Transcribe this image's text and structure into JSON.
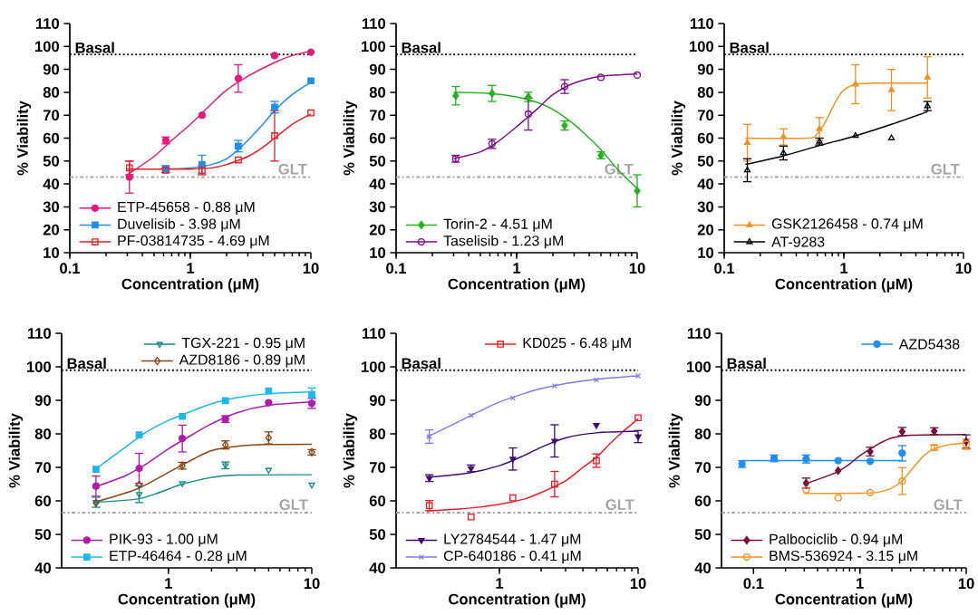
{
  "chart_data": [
    {
      "type": "line",
      "xlabel": "Concentration (μM)",
      "ylabel": "% Viability",
      "log": "x",
      "xlim": [
        0.1,
        10
      ],
      "ylim": [
        10,
        110
      ],
      "xticks": [
        0.1,
        1,
        10
      ],
      "yticks": [
        10,
        20,
        30,
        40,
        50,
        60,
        70,
        80,
        90,
        100,
        110
      ],
      "legend": "bottom left",
      "ref_lines": [
        {
          "axis": "y",
          "value": 96.5,
          "label": "Basal",
          "color": "#000000",
          "line_style": "dotted"
        },
        {
          "axis": "y",
          "value": 43,
          "label": "GLT",
          "color": "#a6a6a6",
          "line_style": "dashdot"
        }
      ],
      "series": [
        {
          "type": "scatter",
          "name": "ETP-45658 - 0.88 μM",
          "color": "#e8197a",
          "marker": "circle",
          "x": [
            0.3125,
            0.625,
            1.25,
            2.5,
            5,
            10
          ],
          "values": [
            43,
            59,
            70,
            86,
            96,
            97.5
          ],
          "errors": [
            7,
            1.5,
            null,
            6,
            null,
            null
          ]
        },
        {
          "type": "line",
          "color": "#e8197a",
          "x": [
            0.3,
            0.5,
            0.7,
            1,
            1.5,
            2,
            3,
            5,
            7,
            10
          ],
          "values": [
            44,
            52,
            59,
            66,
            75,
            81,
            87,
            93,
            96,
            98
          ]
        },
        {
          "type": "scatter",
          "name": "Duvelisib - 3.98 μM",
          "color": "#1f8ef1",
          "marker": "square",
          "x": [
            0.625,
            1.25,
            2.5,
            5,
            10
          ],
          "values": [
            46.5,
            48.5,
            56.5,
            73.5,
            85
          ],
          "errors": [
            1.5,
            4,
            2.5,
            2.5,
            null
          ]
        },
        {
          "type": "line",
          "color": "#1f8ef1",
          "x": [
            0.6,
            1,
            1.5,
            2,
            2.5,
            3,
            4,
            5,
            7,
            10
          ],
          "values": [
            46.5,
            47,
            48.5,
            51,
            55,
            59,
            66,
            72,
            79,
            84.5
          ]
        },
        {
          "type": "scatter",
          "name": "PF-03814735 - 4.69 μM",
          "color": "#ee1c25",
          "marker": "square-open",
          "x": [
            0.3125,
            0.625,
            1.25,
            2.5,
            5,
            10
          ],
          "values": [
            47,
            46,
            46,
            50.5,
            61,
            71
          ],
          "errors": [
            3,
            1,
            2,
            null,
            11,
            null
          ]
        },
        {
          "type": "line",
          "color": "#ee1c25",
          "x": [
            0.3,
            1,
            1.5,
            2,
            3,
            4,
            5,
            7,
            10
          ],
          "values": [
            46.5,
            46.5,
            47,
            48.5,
            52,
            56,
            60,
            66,
            70.5
          ]
        }
      ]
    },
    {
      "type": "line",
      "xlabel": "Concentration (μM)",
      "ylabel": "% Viability",
      "log": "x",
      "xlim": [
        0.1,
        10
      ],
      "ylim": [
        10,
        110
      ],
      "xticks": [
        0.1,
        1,
        10
      ],
      "yticks": [
        10,
        20,
        30,
        40,
        50,
        60,
        70,
        80,
        90,
        100,
        110
      ],
      "legend": "bottom left",
      "ref_lines": [
        {
          "axis": "y",
          "value": 96.5,
          "label": "Basal",
          "color": "#000000",
          "line_style": "dotted"
        },
        {
          "axis": "y",
          "value": 43,
          "label": "GLT",
          "color": "#a6a6a6",
          "line_style": "dashdot"
        }
      ],
      "series": [
        {
          "type": "scatter",
          "name": "Torin-2 - 4.51 μM",
          "color": "#22b31f",
          "marker": "diamond",
          "x": [
            0.3125,
            0.625,
            1.25,
            2.5,
            5,
            10
          ],
          "values": [
            78.5,
            79.5,
            78,
            65.5,
            52.5,
            37
          ],
          "errors": [
            4,
            3.5,
            2,
            2,
            1.5,
            7
          ]
        },
        {
          "type": "line",
          "color": "#22b31f",
          "x": [
            0.3,
            0.6,
            1,
            1.5,
            2,
            3,
            4,
            5,
            7,
            10
          ],
          "values": [
            80,
            79.5,
            78,
            75.5,
            72.5,
            66,
            60,
            55,
            46,
            38
          ]
        },
        {
          "type": "scatter",
          "name": "Taselisib - 1.23 μM",
          "color": "#800f8c",
          "marker": "circle-open",
          "x": [
            0.3125,
            0.625,
            1.25,
            2.5,
            5,
            10
          ],
          "values": [
            51,
            57.5,
            70.5,
            82.5,
            86.5,
            87.5
          ],
          "errors": [
            1.5,
            2,
            7,
            3,
            null,
            null
          ]
        },
        {
          "type": "line",
          "color": "#800f8c",
          "x": [
            0.3,
            0.5,
            0.7,
            1,
            1.5,
            2,
            3,
            5,
            10
          ],
          "values": [
            51,
            54,
            58.5,
            65,
            73,
            79,
            84,
            87,
            88
          ]
        }
      ]
    },
    {
      "type": "line",
      "xlabel": "Concentration (μM)",
      "ylabel": "% Viability",
      "log": "x",
      "xlim": [
        0.1,
        10
      ],
      "ylim": [
        10,
        110
      ],
      "xticks": [
        0.1,
        1,
        10
      ],
      "yticks": [
        10,
        20,
        30,
        40,
        50,
        60,
        70,
        80,
        90,
        100,
        110
      ],
      "legend": "bottom left",
      "ref_lines": [
        {
          "axis": "y",
          "value": 96.5,
          "label": "Basal",
          "color": "#000000",
          "line_style": "dotted"
        },
        {
          "axis": "y",
          "value": 43,
          "label": "GLT",
          "color": "#a6a6a6",
          "line_style": "dashdot"
        }
      ],
      "series": [
        {
          "type": "scatter",
          "name": "GSK2126458 - 0.74 μM",
          "color": "#f7911e",
          "marker": "triangle",
          "x": [
            0.156,
            0.3125,
            0.625,
            1.25,
            2.5,
            5
          ],
          "values": [
            58,
            60.5,
            64,
            83.5,
            81,
            86.5
          ],
          "errors": [
            8,
            3.5,
            5,
            8.5,
            9,
            9
          ]
        },
        {
          "type": "line",
          "color": "#f7911e",
          "x": [
            0.15,
            0.5,
            0.6,
            0.7,
            0.8,
            0.9,
            1,
            1.25,
            2,
            5
          ],
          "values": [
            60,
            60,
            62,
            67,
            73,
            78,
            81,
            83.5,
            84,
            84
          ]
        },
        {
          "type": "scatter",
          "name": "AT-9283",
          "color": "#000000",
          "marker": "triangle-open",
          "x": [
            0.156,
            0.3125,
            0.625,
            1.25,
            2.5,
            5
          ],
          "values": [
            46,
            53.5,
            58.5,
            61,
            60,
            74
          ],
          "errors": [
            5,
            3,
            1.5,
            null,
            null,
            2
          ]
        },
        {
          "type": "line",
          "color": "#000000",
          "x": [
            0.15,
            0.3,
            0.6,
            1.25,
            2.5,
            5
          ],
          "values": [
            48.5,
            52,
            56.5,
            61,
            66,
            71.5
          ]
        }
      ]
    },
    {
      "type": "line",
      "xlabel": "Concentration (μM)",
      "ylabel": "% Viability",
      "log": "x",
      "xlim": [
        0.18,
        10
      ],
      "ylim": [
        40,
        110
      ],
      "xticks": [
        1,
        10
      ],
      "yticks": [
        40,
        50,
        60,
        70,
        80,
        90,
        100,
        110
      ],
      "legend": [
        "top right",
        "top right",
        "bottom left",
        "bottom left"
      ],
      "ref_lines": [
        {
          "axis": "y",
          "value": 99,
          "label": "Basal",
          "color": "#000000",
          "line_style": "dotted"
        },
        {
          "axis": "y",
          "value": 56.5,
          "label": "GLT",
          "color": "#a6a6a6",
          "line_style": "dashdot"
        }
      ],
      "series": [
        {
          "type": "scatter",
          "name": "TGX-221 - 0.95 μM",
          "color": "#178a88",
          "marker": "triangle-down-open",
          "x": [
            0.3125,
            0.625,
            1.25,
            2.5,
            5,
            10
          ],
          "values": [
            59.6,
            62,
            65.2,
            70.6,
            69.2,
            64.8
          ],
          "errors": [
            1.5,
            2.5,
            null,
            1,
            null,
            null
          ]
        },
        {
          "type": "line",
          "color": "#178a88",
          "x": [
            0.3,
            0.6,
            0.8,
            1,
            1.25,
            2,
            3,
            10
          ],
          "values": [
            59.5,
            60.5,
            62,
            63.5,
            65,
            67,
            67.7,
            67.8
          ]
        },
        {
          "type": "scatter",
          "name": "AZD8186 - 0.89 μM",
          "color": "#8b4513",
          "marker": "diamond-open",
          "x": [
            0.3125,
            0.625,
            1.25,
            2.5,
            5,
            10
          ],
          "values": [
            59.4,
            64.8,
            70.5,
            76.7,
            78.8,
            74.5
          ],
          "errors": [
            null,
            null,
            1,
            1.2,
            1.8,
            0.8
          ]
        },
        {
          "type": "line",
          "color": "#8b4513",
          "x": [
            0.3,
            0.6,
            1,
            1.5,
            2,
            3,
            5,
            10
          ],
          "values": [
            59.5,
            63.5,
            68.5,
            72.5,
            75,
            76.3,
            76.8,
            76.9
          ]
        },
        {
          "type": "scatter",
          "name": "PIK-93 - 1.00 μM",
          "color": "#b21aab",
          "marker": "circle",
          "x": [
            0.3125,
            0.625,
            1.25,
            2.5,
            5,
            10
          ],
          "values": [
            64.4,
            69.7,
            78.6,
            84.4,
            89.3,
            89.1
          ],
          "errors": [
            3,
            4.5,
            4,
            1,
            null,
            1.5
          ]
        },
        {
          "type": "line",
          "color": "#b21aab",
          "x": [
            0.3,
            0.5,
            0.7,
            1,
            1.5,
            2,
            3,
            5,
            10
          ],
          "values": [
            64,
            67.5,
            71,
            75.5,
            80,
            83,
            86.3,
            88.5,
            89.5
          ]
        },
        {
          "type": "scatter",
          "name": "ETP-46464 - 0.28 μM",
          "color": "#1bb8f0",
          "marker": "square",
          "x": [
            0.3125,
            0.625,
            1.25,
            2.5,
            5,
            10
          ],
          "values": [
            69.4,
            79.7,
            85.2,
            89.9,
            92.8,
            91.7
          ],
          "errors": [
            null,
            null,
            null,
            null,
            null,
            2
          ]
        },
        {
          "type": "line",
          "color": "#1bb8f0",
          "x": [
            0.3,
            0.5,
            0.7,
            1,
            1.5,
            2,
            3,
            5,
            10
          ],
          "values": [
            69,
            76,
            80.5,
            84,
            87,
            89,
            90.8,
            92,
            92.5
          ]
        }
      ]
    },
    {
      "type": "line",
      "xlabel": "Concentration (μM)",
      "ylabel": "% Viability",
      "log": "x",
      "xlim": [
        0.18,
        10
      ],
      "ylim": [
        40,
        110
      ],
      "xticks": [
        1,
        10
      ],
      "yticks": [
        40,
        50,
        60,
        70,
        80,
        90,
        100,
        110
      ],
      "legend": [
        "top right",
        "bottom left",
        "bottom left"
      ],
      "ref_lines": [
        {
          "axis": "y",
          "value": 99,
          "label": "Basal",
          "color": "#000000",
          "line_style": "dotted"
        },
        {
          "axis": "y",
          "value": 56.5,
          "label": "GLT",
          "color": "#a6a6a6",
          "line_style": "dashdot"
        }
      ],
      "series": [
        {
          "type": "scatter",
          "name": "KD025 - 6.48 μM",
          "color": "#ee1c25",
          "marker": "square-open",
          "x": [
            0.3125,
            0.625,
            1.25,
            2.5,
            5,
            10
          ],
          "values": [
            58.6,
            55.2,
            60.9,
            65,
            72,
            84.8
          ],
          "errors": [
            1.5,
            null,
            null,
            3.8,
            2,
            null
          ]
        },
        {
          "type": "line",
          "color": "#ee1c25",
          "x": [
            0.3,
            0.6,
            1,
            1.5,
            2,
            3,
            4,
            5,
            7,
            10
          ],
          "values": [
            57,
            57.8,
            59,
            60.5,
            62.5,
            66,
            70,
            73,
            79,
            84.5
          ]
        },
        {
          "type": "scatter",
          "name": "LY2784544 - 1.47 μM",
          "color": "#3f0a7a",
          "marker": "triangle-down",
          "x": [
            0.3125,
            0.625,
            1.25,
            2.5,
            5,
            10
          ],
          "values": [
            66.8,
            69.7,
            72.5,
            77.9,
            82.6,
            79.2
          ],
          "errors": [
            1,
            1,
            3.3,
            4.8,
            null,
            1.8
          ]
        },
        {
          "type": "line",
          "color": "#3f0a7a",
          "x": [
            0.3,
            0.6,
            1,
            1.5,
            2,
            3,
            5,
            10
          ],
          "values": [
            67,
            68.3,
            70.5,
            73.5,
            76,
            78.8,
            80.3,
            80.8
          ]
        },
        {
          "type": "scatter",
          "name": "CP-640186 - 0.41 μM",
          "color": "#7d7cf0",
          "marker": "cross",
          "x": [
            0.3125,
            0.625,
            1.25,
            2.5,
            5,
            10
          ],
          "values": [
            79.2,
            85.5,
            90.7,
            94.3,
            96.1,
            97.3
          ],
          "errors": [
            2,
            null,
            null,
            null,
            null,
            null
          ]
        },
        {
          "type": "line",
          "color": "#7d7cf0",
          "x": [
            0.3,
            0.5,
            0.7,
            1,
            1.5,
            2,
            3,
            5,
            10
          ],
          "values": [
            79,
            83.5,
            86.5,
            89.5,
            92,
            93.5,
            95,
            96.3,
            97.3
          ]
        }
      ]
    },
    {
      "type": "line",
      "xlabel": "Concentration (μM)",
      "ylabel": "% Viability",
      "log": "x",
      "xlim": [
        0.05,
        10
      ],
      "ylim": [
        40,
        110
      ],
      "xticks": [
        0.1,
        1,
        10
      ],
      "yticks": [
        40,
        50,
        60,
        70,
        80,
        90,
        100,
        110
      ],
      "legend": [
        "top right",
        "bottom left",
        "bottom left"
      ],
      "ref_lines": [
        {
          "axis": "y",
          "value": 99,
          "label": "Basal",
          "color": "#000000",
          "line_style": "dotted"
        },
        {
          "axis": "y",
          "value": 56.5,
          "label": "GLT",
          "color": "#a6a6a6",
          "line_style": "dashdot"
        }
      ],
      "series": [
        {
          "type": "scatter",
          "name": "AZD5438",
          "color": "#1f8ef1",
          "marker": "circle",
          "x": [
            0.078,
            0.156,
            0.3125,
            0.625,
            1.25,
            2.5
          ],
          "values": [
            71,
            72.7,
            72.5,
            72,
            71.8,
            74.2
          ],
          "errors": [
            1,
            1,
            1.2,
            null,
            null,
            2.3
          ]
        },
        {
          "type": "line",
          "color": "#1f8ef1",
          "x": [
            0.078,
            2.5
          ],
          "values": [
            72,
            72
          ]
        },
        {
          "type": "scatter",
          "name": "Palbociclib - 0.94 μM",
          "color": "#7a0f3f",
          "marker": "diamond",
          "x": [
            0.3125,
            0.625,
            1.25,
            2.5,
            5,
            10
          ],
          "values": [
            65.3,
            69,
            74.7,
            80.7,
            80.8,
            77.7
          ],
          "errors": [
            1.5,
            null,
            1.3,
            1.2,
            1,
            2
          ]
        },
        {
          "type": "line",
          "color": "#7a0f3f",
          "x": [
            0.3,
            0.6,
            0.8,
            1,
            1.5,
            2,
            3,
            10
          ],
          "values": [
            65,
            68.5,
            71,
            73.5,
            77,
            78.8,
            79.6,
            79.8
          ]
        },
        {
          "type": "scatter",
          "name": "BMS-536924 - 3.15 μM",
          "color": "#f7911e",
          "marker": "circle-open",
          "x": [
            0.3125,
            0.625,
            1.25,
            2.5,
            5,
            10
          ],
          "values": [
            63.3,
            60.9,
            62.5,
            65.9,
            75.9,
            76.9
          ],
          "errors": [
            null,
            null,
            null,
            4,
            0.8,
            1.5
          ]
        },
        {
          "type": "line",
          "color": "#f7911e",
          "x": [
            0.3,
            1,
            1.5,
            2,
            2.5,
            3,
            4,
            5,
            7,
            10
          ],
          "values": [
            62.2,
            62.3,
            62.6,
            63.8,
            66,
            69,
            73.5,
            75.5,
            76.8,
            77.3
          ]
        }
      ]
    }
  ]
}
